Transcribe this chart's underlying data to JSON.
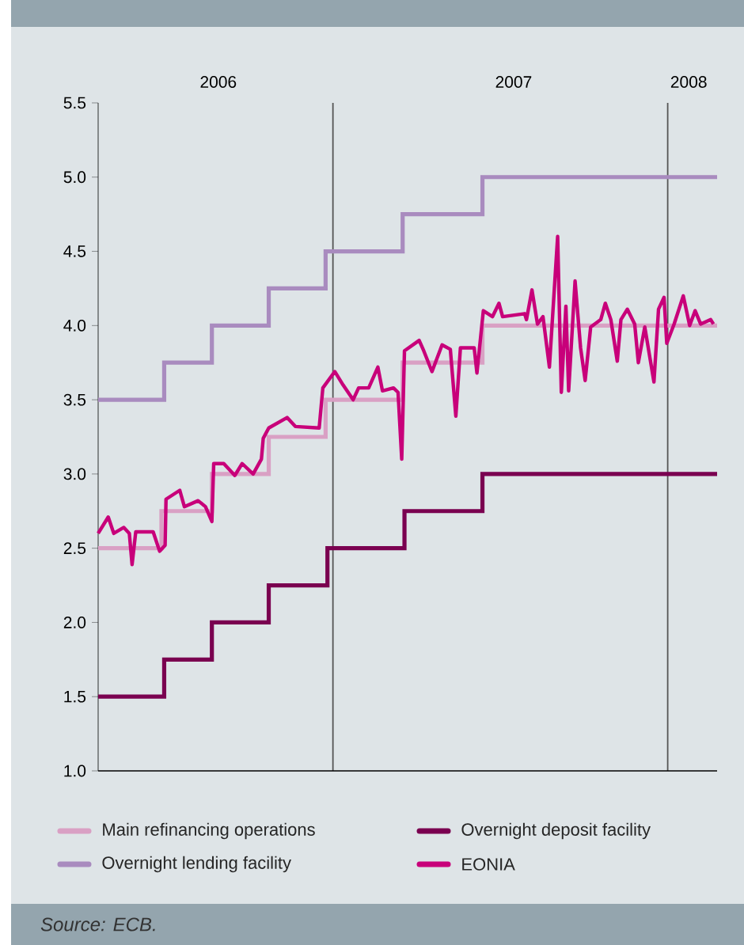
{
  "chart_data": {
    "type": "line",
    "annotations": [
      "*Source: ECB.*"
    ],
    "xlim": [
      "2006-04-20",
      "2008-02-24"
    ],
    "xticks": [
      {
        "value": "2006-08-29",
        "label": "2006"
      },
      {
        "value": "2007-07-17",
        "label": "2007"
      },
      {
        "value": "2008-01-24",
        "label": "2008"
      }
    ],
    "ylim": [
      1.0,
      5.5
    ],
    "yticks": [
      {
        "value": 1.0,
        "label": "1.0"
      },
      {
        "value": 1.5,
        "label": "1.5"
      },
      {
        "value": 2.0,
        "label": "2.0"
      },
      {
        "value": 2.5,
        "label": "2.5"
      },
      {
        "value": 3.0,
        "label": "3.0"
      },
      {
        "value": 3.5,
        "label": "3.5"
      },
      {
        "value": 4.0,
        "label": "4.0"
      },
      {
        "value": 4.5,
        "label": "4.5"
      },
      {
        "value": 5.0,
        "label": "5.0"
      },
      {
        "value": 5.5,
        "label": "5.5"
      }
    ],
    "ref_lines": [
      {
        "axis": "x",
        "value": "2007-01-01",
        "color": "#555555"
      },
      {
        "axis": "x",
        "value": "2008-01-01",
        "color": "#555555"
      }
    ],
    "legend": "bottom",
    "series": [
      {
        "name": "Main refinancing operations",
        "type": "step",
        "color": "#d9a0c4",
        "x": [
          "2006-04-20",
          "2006-06-28",
          "2006-08-22",
          "2006-10-23",
          "2006-12-24",
          "2007-03-18",
          "2007-06-13",
          "2008-02-24"
        ],
        "values": [
          2.5,
          2.75,
          3.0,
          3.25,
          3.5,
          3.75,
          4.0,
          4.0
        ]
      },
      {
        "name": "Overnight deposit facility",
        "type": "step",
        "color": "#7a0050",
        "x": [
          "2006-04-20",
          "2006-07-01",
          "2006-08-22",
          "2006-10-23",
          "2006-12-26",
          "2007-03-20",
          "2007-06-13",
          "2008-02-24"
        ],
        "values": [
          1.5,
          1.75,
          2.0,
          2.25,
          2.5,
          2.75,
          3.0,
          3.0
        ]
      },
      {
        "name": "Overnight lending facility",
        "type": "step",
        "color": "#a98bbf",
        "x": [
          "2006-04-20",
          "2006-07-01",
          "2006-08-22",
          "2006-10-23",
          "2006-12-24",
          "2007-03-18",
          "2007-06-13",
          "2008-02-24"
        ],
        "values": [
          3.5,
          3.75,
          4.0,
          4.25,
          4.5,
          4.75,
          5.0,
          5.0
        ]
      },
      {
        "name": "EONIA",
        "type": "line",
        "color": "#c8007a",
        "x": [
          "2006-04-20",
          "2006-05-01",
          "2006-05-07",
          "2006-05-18",
          "2006-05-24",
          "2006-05-27",
          "2006-05-31",
          "2006-06-19",
          "2006-06-26",
          "2006-07-02",
          "2006-07-03",
          "2006-07-18",
          "2006-07-23",
          "2006-08-07",
          "2006-08-15",
          "2006-08-22",
          "2006-08-24",
          "2006-09-04",
          "2006-09-16",
          "2006-09-24",
          "2006-10-06",
          "2006-10-15",
          "2006-10-17",
          "2006-10-23",
          "2006-11-12",
          "2006-11-21",
          "2006-12-17",
          "2006-12-21",
          "2007-01-03",
          "2007-01-12",
          "2007-01-23",
          "2007-01-29",
          "2007-02-09",
          "2007-02-19",
          "2007-02-24",
          "2007-03-08",
          "2007-03-13",
          "2007-03-17",
          "2007-03-20",
          "2007-04-05",
          "2007-04-10",
          "2007-04-19",
          "2007-04-30",
          "2007-05-09",
          "2007-05-15",
          "2007-05-20",
          "2007-06-04",
          "2007-06-07",
          "2007-06-14",
          "2007-06-24",
          "2007-07-01",
          "2007-07-05",
          "2007-07-29",
          "2007-07-31",
          "2007-08-06",
          "2007-08-12",
          "2007-08-18",
          "2007-08-25",
          "2007-09-03",
          "2007-09-07",
          "2007-09-12",
          "2007-09-15",
          "2007-09-22",
          "2007-09-28",
          "2007-10-03",
          "2007-10-09",
          "2007-10-20",
          "2007-10-25",
          "2007-10-31",
          "2007-11-07",
          "2007-11-11",
          "2007-11-18",
          "2007-11-26",
          "2007-11-30",
          "2007-12-07",
          "2007-12-17",
          "2007-12-22",
          "2007-12-28",
          "2007-12-31",
          "2008-01-08",
          "2008-01-18",
          "2008-01-25",
          "2008-01-31",
          "2008-02-06",
          "2008-02-17",
          "2008-02-20"
        ],
        "values": [
          2.6,
          2.71,
          2.6,
          2.64,
          2.6,
          2.39,
          2.61,
          2.61,
          2.48,
          2.52,
          2.83,
          2.89,
          2.78,
          2.82,
          2.78,
          2.68,
          3.07,
          3.07,
          2.99,
          3.07,
          3.0,
          3.1,
          3.24,
          3.31,
          3.38,
          3.32,
          3.31,
          3.58,
          3.69,
          3.6,
          3.5,
          3.58,
          3.58,
          3.72,
          3.56,
          3.58,
          3.55,
          3.1,
          3.83,
          3.9,
          3.83,
          3.69,
          3.87,
          3.84,
          3.39,
          3.85,
          3.85,
          3.68,
          4.1,
          4.06,
          4.15,
          4.06,
          4.08,
          4.04,
          4.24,
          4.01,
          4.06,
          3.72,
          4.6,
          3.55,
          4.13,
          3.56,
          4.3,
          3.85,
          3.63,
          3.99,
          4.04,
          4.15,
          4.04,
          3.76,
          4.04,
          4.11,
          4.01,
          3.75,
          3.99,
          3.62,
          4.11,
          4.19,
          3.88,
          4.01,
          4.2,
          4.0,
          4.1,
          4.01,
          4.04,
          4.01
        ]
      }
    ]
  }
}
